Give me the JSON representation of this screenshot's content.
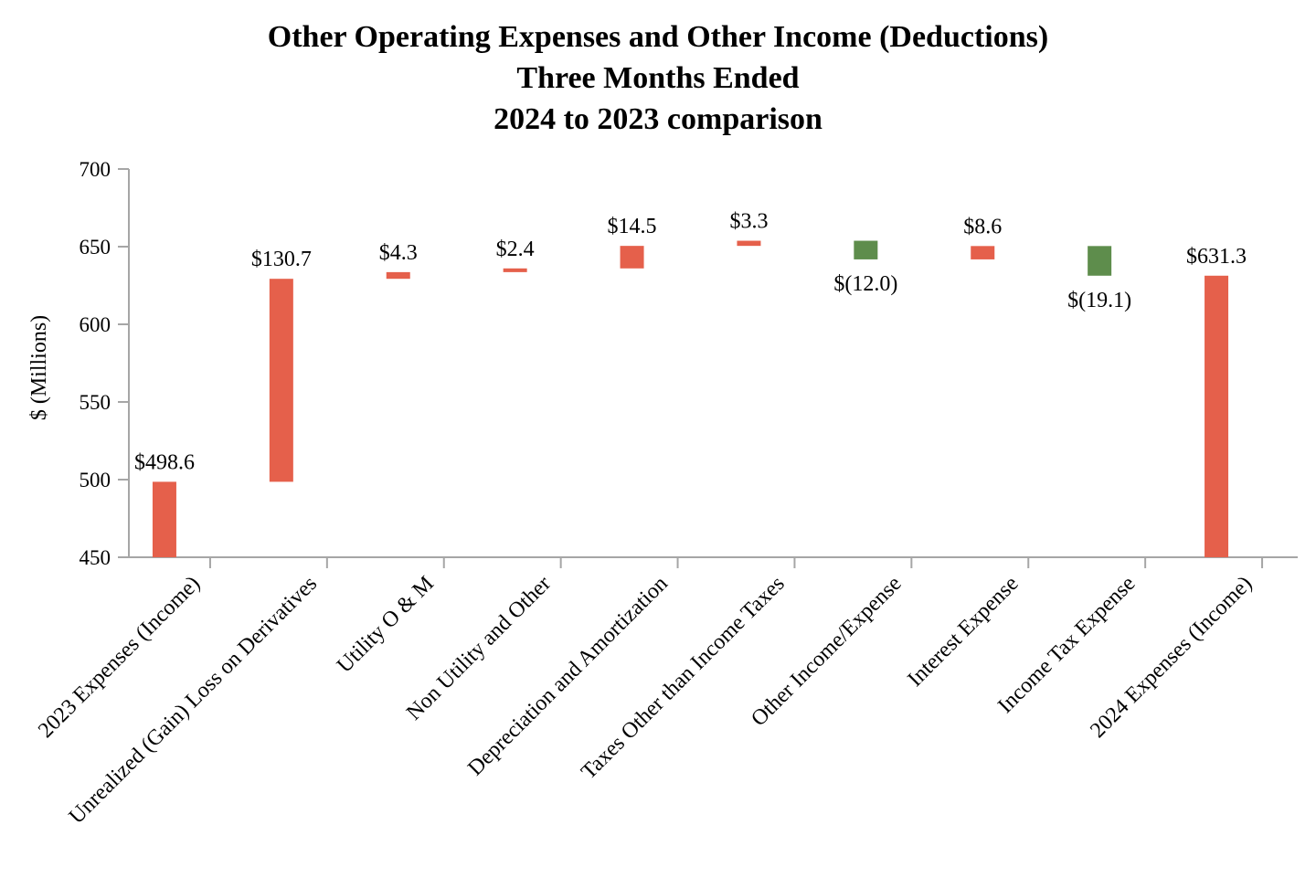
{
  "chart_data": {
    "type": "bar",
    "subtype": "waterfall",
    "title": [
      "Other Operating Expenses and Other Income (Deductions)",
      "Three Months Ended",
      "2024 to 2023 comparison"
    ],
    "xlabel": "",
    "ylabel": "$ (Millions)",
    "ylim": [
      450,
      700
    ],
    "yticks": [
      "700",
      "650",
      "600",
      "550",
      "500",
      "450"
    ],
    "grid": false,
    "legend": "none",
    "colors": {
      "increase": "#e5604b",
      "decrease": "#5e8d4c",
      "total": "#e5604b",
      "axis": "#a6a6a6"
    },
    "categories": [
      "2023 Expenses (Income)",
      "Unrealized (Gain) Loss on Derivatives",
      "Utility O & M",
      "Non Utility and Other",
      "Depreciation and Amortization",
      "Taxes Other than Income Taxes",
      "Other Income/Expense",
      "Interest Expense",
      "Income Tax Expense",
      "2024 Expenses (Income)"
    ],
    "values": [
      498.6,
      130.7,
      4.3,
      2.4,
      14.5,
      3.3,
      -12.0,
      8.6,
      -19.1,
      631.3
    ],
    "kinds": [
      "total",
      "delta",
      "delta",
      "delta",
      "delta",
      "delta",
      "delta",
      "delta",
      "delta",
      "total"
    ],
    "data_labels": [
      "$498.6",
      "$130.7",
      "$4.3",
      "$2.4",
      "$14.5",
      "$3.3",
      "$(12.0)",
      "$8.6",
      "$(19.1)",
      "$631.3"
    ]
  }
}
